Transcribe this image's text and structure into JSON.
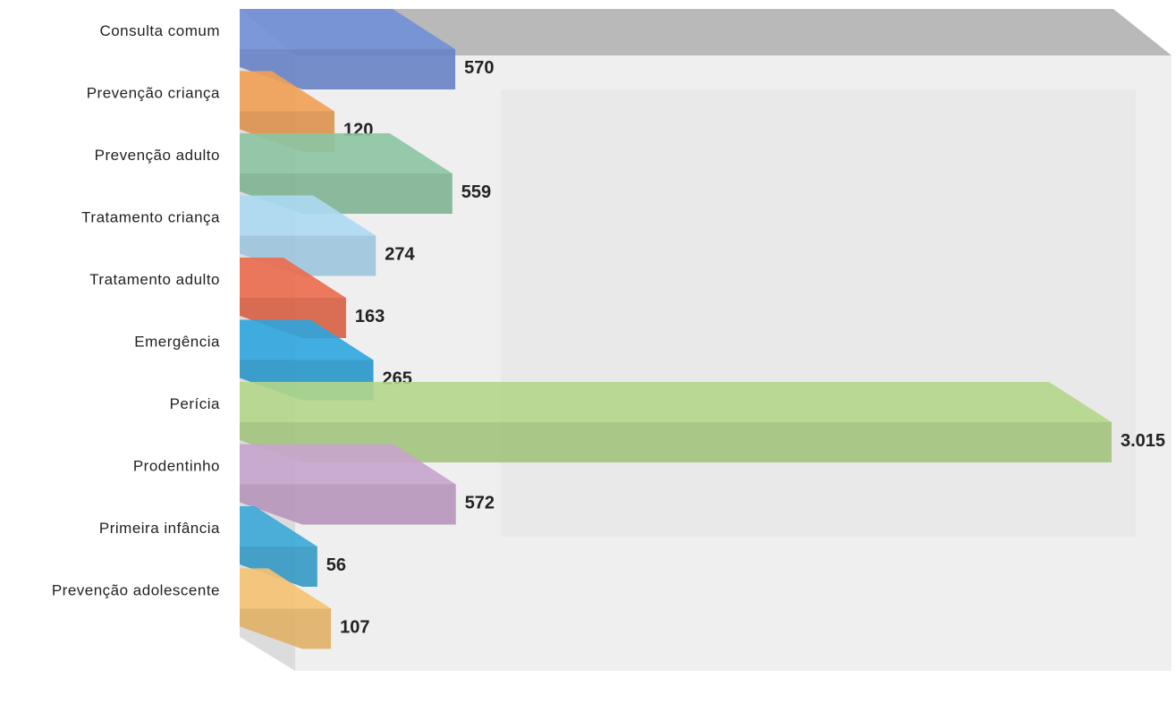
{
  "chart_data": {
    "type": "bar3d-horizontal",
    "categories": [
      "Consulta comum",
      "Prevenção criança",
      "Prevenção adulto",
      "Tratamento criança",
      "Tratamento adulto",
      "Emergência",
      "Perícia",
      "Prodentinho",
      "Primeira  infância",
      "Prevenção adolescente"
    ],
    "values": [
      570,
      120,
      559,
      274,
      163,
      265,
      3015,
      572,
      56,
      107
    ],
    "value_labels": [
      "570",
      "120",
      "559",
      "274",
      "163",
      "265",
      "3.015",
      "572",
      "56",
      "107"
    ],
    "colors": [
      "#7290d8",
      "#f2a055",
      "#8cc4a2",
      "#acd9f2",
      "#eb6a4c",
      "#2ea5de",
      "#b3d68a",
      "#c6a4cd",
      "#3ba9d8",
      "#f6c271"
    ]
  }
}
